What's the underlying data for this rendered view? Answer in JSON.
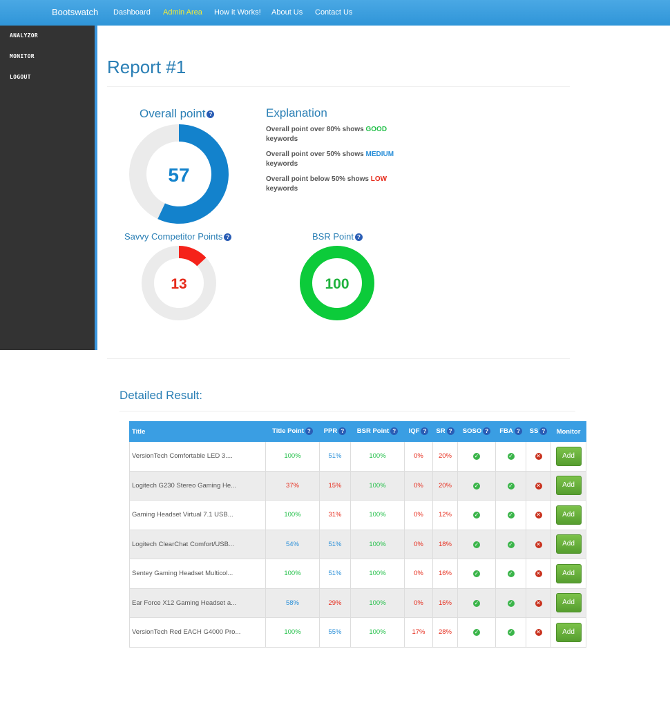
{
  "navbar": {
    "brand": "Bootswatch",
    "links": [
      "Dashboard",
      "Admin Area",
      "How it Works!",
      "About Us",
      "Contact Us"
    ],
    "active_color": "#f2ec37"
  },
  "sidebar": {
    "items": [
      "ANALYZOR",
      "MONITOR",
      "LOGOUT"
    ]
  },
  "page_title": "Report #1",
  "overall": {
    "title": "Overall point",
    "value": "57",
    "fraction": 0.57,
    "color": "#1382cc"
  },
  "savvy": {
    "title": "Savvy Competitor Points",
    "value": "13",
    "fraction": 0.13,
    "color": "#f5221a"
  },
  "bsr": {
    "title": "BSR Point",
    "value": "100",
    "fraction": 1.0,
    "color": "#0ccb3a"
  },
  "help_glyph": "?",
  "explanation": {
    "title": "Explanation",
    "lines": [
      {
        "prefix": "Overall point over 80% shows ",
        "keyword": "GOOD",
        "suffix": "keywords"
      },
      {
        "prefix": "Overall point over 50% shows ",
        "keyword": "MEDIUM",
        "suffix": "keywords"
      },
      {
        "prefix": "Overall point below 50% shows ",
        "keyword": "LOW",
        "suffix": "keywords"
      }
    ]
  },
  "detail_title": "Detailed Result:",
  "table": {
    "headers": [
      "Title",
      "Title Point",
      "PPR",
      "BSR Point",
      "IQF",
      "SR",
      "SOSO",
      "FBA",
      "SS",
      "Monitor"
    ],
    "add_label": "Add",
    "rows": [
      {
        "title": "VersionTech Comfortable LED 3....",
        "title_point": "100%",
        "tp_c": "green",
        "ppr": "51%",
        "ppr_c": "blue",
        "bsr": "100%",
        "bsr_c": "green",
        "iqf": "0%",
        "iqf_c": "red",
        "sr": "20%",
        "sr_c": "red",
        "soso": true,
        "fba": true,
        "ss": false
      },
      {
        "title": "Logitech G230 Stereo Gaming He...",
        "title_point": "37%",
        "tp_c": "red",
        "ppr": "15%",
        "ppr_c": "red",
        "bsr": "100%",
        "bsr_c": "green",
        "iqf": "0%",
        "iqf_c": "red",
        "sr": "20%",
        "sr_c": "red",
        "soso": true,
        "fba": true,
        "ss": false
      },
      {
        "title": "Gaming Headset Virtual 7.1 USB...",
        "title_point": "100%",
        "tp_c": "green",
        "ppr": "31%",
        "ppr_c": "red",
        "bsr": "100%",
        "bsr_c": "green",
        "iqf": "0%",
        "iqf_c": "red",
        "sr": "12%",
        "sr_c": "red",
        "soso": true,
        "fba": true,
        "ss": false
      },
      {
        "title": "Logitech ClearChat Comfort/USB...",
        "title_point": "54%",
        "tp_c": "blue",
        "ppr": "51%",
        "ppr_c": "blue",
        "bsr": "100%",
        "bsr_c": "green",
        "iqf": "0%",
        "iqf_c": "red",
        "sr": "18%",
        "sr_c": "red",
        "soso": true,
        "fba": true,
        "ss": false
      },
      {
        "title": "Sentey Gaming Headset Multicol...",
        "title_point": "100%",
        "tp_c": "green",
        "ppr": "51%",
        "ppr_c": "blue",
        "bsr": "100%",
        "bsr_c": "green",
        "iqf": "0%",
        "iqf_c": "red",
        "sr": "16%",
        "sr_c": "red",
        "soso": true,
        "fba": true,
        "ss": false
      },
      {
        "title": "Ear Force X12 Gaming Headset a...",
        "title_point": "58%",
        "tp_c": "blue",
        "ppr": "29%",
        "ppr_c": "red",
        "bsr": "100%",
        "bsr_c": "green",
        "iqf": "0%",
        "iqf_c": "red",
        "sr": "16%",
        "sr_c": "red",
        "soso": true,
        "fba": true,
        "ss": false
      },
      {
        "title": "VersionTech Red EACH G4000 Pro...",
        "title_point": "100%",
        "tp_c": "green",
        "ppr": "55%",
        "ppr_c": "blue",
        "bsr": "100%",
        "bsr_c": "green",
        "iqf": "17%",
        "iqf_c": "red",
        "sr": "28%",
        "sr_c": "red",
        "soso": true,
        "fba": true,
        "ss": false
      }
    ]
  }
}
